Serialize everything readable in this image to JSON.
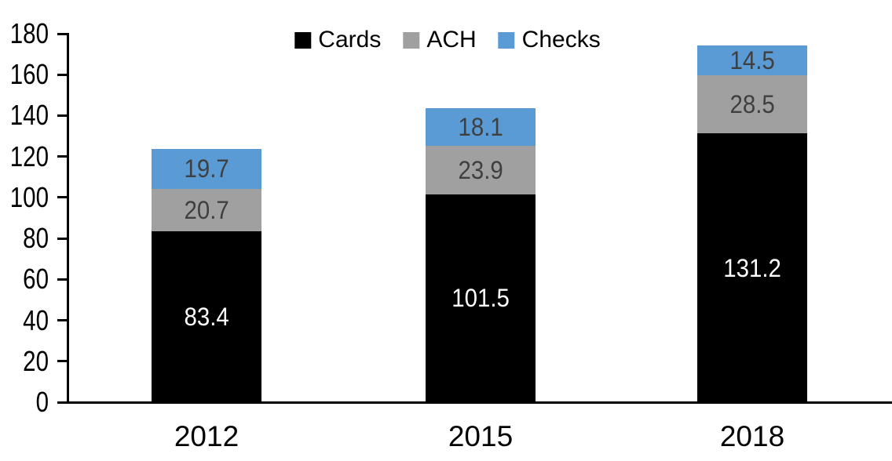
{
  "chart_data": {
    "type": "bar",
    "stacked": true,
    "categories": [
      "2012",
      "2015",
      "2018"
    ],
    "series": [
      {
        "name": "Cards",
        "color": "#000000",
        "label_color": "#ffffff",
        "values": [
          83.4,
          101.5,
          131.2
        ]
      },
      {
        "name": "ACH",
        "color": "#A0A0A0",
        "label_color": "#3F3F3F",
        "values": [
          20.7,
          23.9,
          28.5
        ]
      },
      {
        "name": "Checks",
        "color": "#5B9BD5",
        "label_color": "#3F3F3F",
        "values": [
          19.7,
          18.1,
          14.5
        ]
      }
    ],
    "totals": [
      123.8,
      143.5,
      174.2
    ],
    "ylim": [
      0,
      180
    ],
    "yticks": [
      0,
      20,
      40,
      60,
      80,
      100,
      120,
      140,
      160,
      180
    ],
    "legend_position": "top",
    "legend_labels": [
      "Cards",
      "ACH",
      "Checks"
    ],
    "grid": false,
    "axis_color": "#000000",
    "background_color": "#ffffff",
    "data_labels_shown": true
  }
}
